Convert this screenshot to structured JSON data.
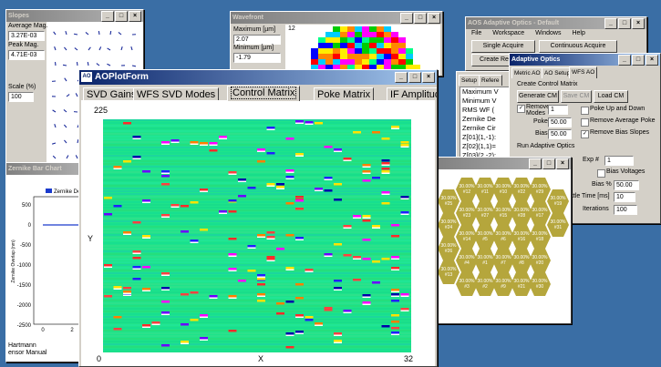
{
  "desktop": {
    "color": "#3a6ea5"
  },
  "slopes": {
    "title": "Slopes",
    "avg_label": "Average Mag.",
    "avg_value": "3.27E-03",
    "peak_label": "Peak Mag.",
    "peak_value": "4.71E-03",
    "scale_label": "Scale (%)",
    "scale_value": "100"
  },
  "wavefront": {
    "title": "Wavefront",
    "max_label": "Maximum [µm]",
    "max_value": "2.07",
    "min_label": "Minimum [µm]",
    "min_value": "-1.79",
    "plot_label": "12"
  },
  "zernike": {
    "title": "Zernike Bar Chart",
    "legend": "Zernike De",
    "ylabel": "Zernike Overlap (nm)",
    "yticks": [
      "500",
      "0",
      "-500",
      "-1000",
      "-1500",
      "-2000",
      "-2500"
    ],
    "xticks": [
      "0",
      "2"
    ],
    "footer1": "Hartmann",
    "footer2": "ensor Manual"
  },
  "aos": {
    "title": "AOS Adaptive Optics - Default",
    "menu": [
      "File",
      "Workspace",
      "Windows",
      "Help"
    ],
    "single_acquire": "Single Acquire",
    "continuous_acquire": "Continuous Acquire",
    "create_reference": "Create Refere"
  },
  "adaptive": {
    "title": "Adaptive Optics",
    "tabs": [
      "Metric AO",
      "AO Setup",
      "WFS AO"
    ],
    "group_cm": "Create Control Matrix",
    "generate_cm": "Generate CM",
    "save_cm": "Save CM",
    "load_cm": "Load CM",
    "remove_modes": "Remove Modes",
    "remove_modes_value": "1",
    "poke_label": "Poke %",
    "poke_value": "50.00",
    "bias_label": "Bias %",
    "bias_value": "50.00",
    "poke_up_down": "Poke Up and Down",
    "remove_avg_poke": "Remove Average Poke",
    "remove_bias_slopes": "Remove Bias Slopes",
    "group_run": "Run Adaptive Optics",
    "exp_label": "Exp #",
    "exp_value": "1",
    "bias_voltages": "Bias Voltages",
    "bias2_label": "Bias %",
    "bias2_value": "50.00",
    "settle_label": "ettle Time [ms]",
    "settle_value": "10",
    "iter_label": "Iterations",
    "iter_value": "100"
  },
  "setup_panel": {
    "tabs": [
      "Setup",
      "Refere"
    ],
    "items": [
      "Maximum V",
      "Minimum V",
      "RMS WF (",
      "Zernike De",
      "Zernike Cir",
      "Z[01](1,-1):",
      "Z[02](1,1)=",
      "Z[03](2,-2):"
    ]
  },
  "aoplot": {
    "title": "AOPlotForm",
    "tabs": [
      "SVD Gains",
      "WFS SVD Modes",
      "Control Matrix",
      "Poke Matrix",
      "IF Amplitude"
    ],
    "selected_tab": "Control Matrix",
    "ymax": "225",
    "ylabel": "Y",
    "xmin": "0",
    "xlabel": "X",
    "xmax": "32"
  },
  "hexmap": {
    "labels": [
      "30.00%\n#25",
      "30.00%\n#24",
      "30.00%\n#26",
      "30.00%\n#13",
      "30.00%\n#12",
      "30.00%\n#23",
      "30.00%\n#14",
      "30.00%\n#4",
      "30.00%\n#3",
      "30.00%\n#11",
      "30.00%\n#27",
      "30.00%\n#5",
      "30.00%\n#1",
      "30.00%\n#2",
      "30.00%\n#10",
      "30.00%\n#15",
      "30.00%\n#6",
      "30.00%\n#7",
      "30.00%\n#9",
      "30.00%\n#22",
      "30.00%\n#28",
      "30.00%\n#16",
      "30.00%\n#8",
      "30.00%\n#21",
      "30.00%\n#29",
      "30.00%\n#17",
      "30.00%\n#18",
      "30.00%\n#20",
      "30.00%\n#30",
      "30.00%\n#19",
      "30.00%\n#31"
    ]
  }
}
